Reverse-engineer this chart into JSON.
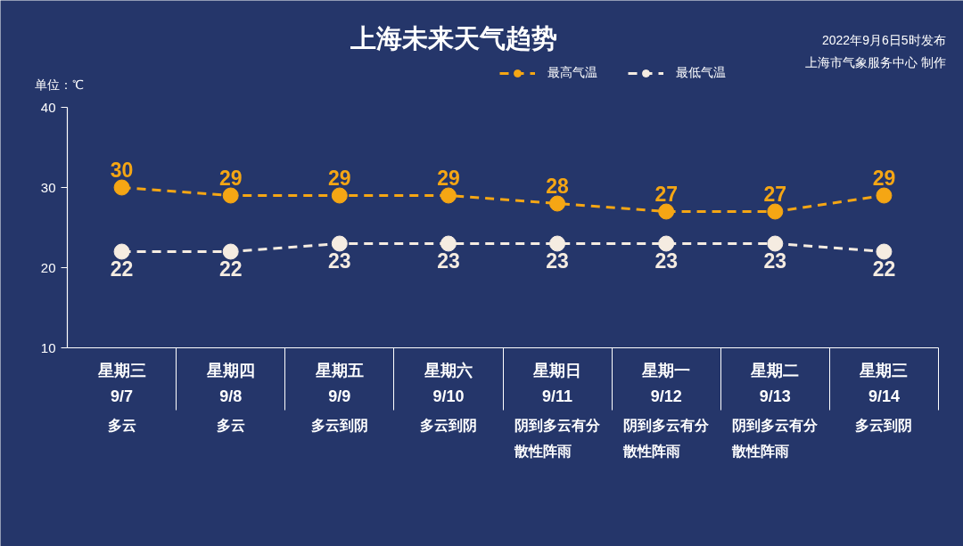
{
  "chart_data": {
    "type": "line",
    "title": "上海未来天气趋势",
    "ylabel": "单位：℃",
    "annotations": [
      "2022年9月6日5时发布",
      "上海市气象服务中心 制作"
    ],
    "categories": [
      "星期三\n9/7\n多云",
      "星期四\n9/8\n多云",
      "星期五\n9/9\n多云到阴",
      "星期六\n9/10\n多云到阴",
      "星期日\n9/11\n阴到多云有分散性阵雨",
      "星期一\n9/12\n阴到多云有分散性阵雨",
      "星期二\n9/13\n阴到多云有分散性阵雨",
      "星期三\n9/14\n多云到阴"
    ],
    "series": [
      {
        "name": "最高气温",
        "color": "#f5a614",
        "values": [
          30,
          29,
          29,
          29,
          28,
          27,
          27,
          29
        ]
      },
      {
        "name": "最低气温",
        "color": "#f5ece1",
        "values": [
          22,
          22,
          23,
          23,
          23,
          23,
          23,
          22
        ]
      }
    ],
    "ylim": [
      10,
      40
    ],
    "yticks": [
      10,
      20,
      30,
      40
    ],
    "data_labels": true,
    "legend": "top",
    "marker": "circle",
    "line_style": "dashed"
  }
}
